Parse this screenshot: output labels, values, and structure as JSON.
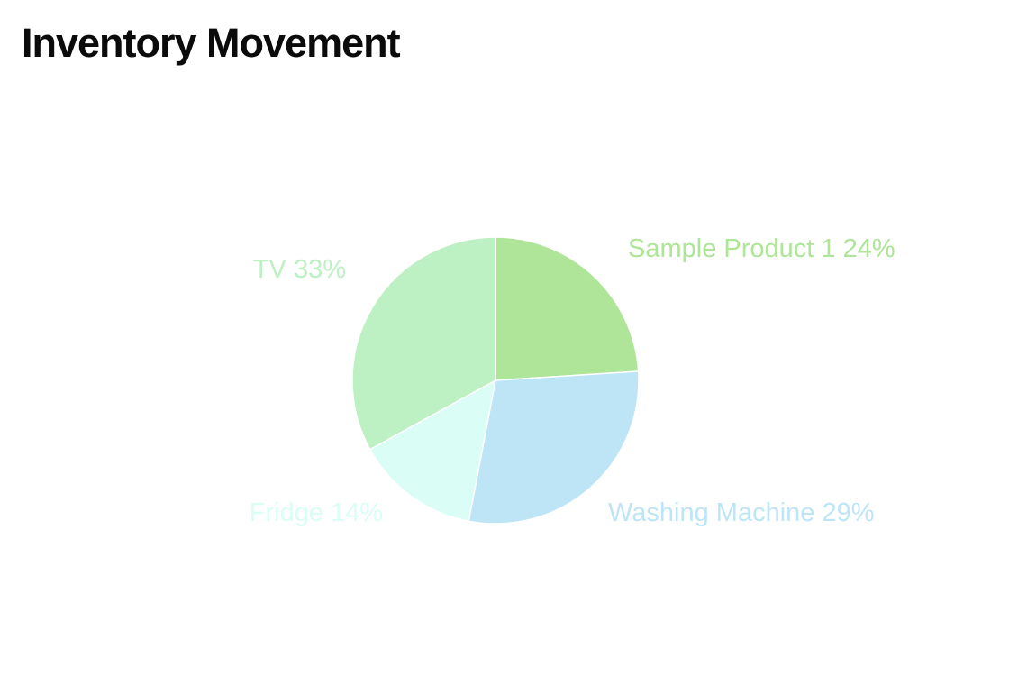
{
  "page": {
    "title": "Inventory Movement"
  },
  "chart_data": {
    "type": "pie",
    "title": "",
    "slices": [
      {
        "label": "Sample Product 1",
        "value": 24,
        "display": "Sample Product 1 24%",
        "color": "#aee598"
      },
      {
        "label": "Washing Machine",
        "value": 29,
        "display": "Washing Machine 29%",
        "color": "#bde5f6"
      },
      {
        "label": "Fridge",
        "value": 14,
        "display": "Fridge 14%",
        "color": "#dafdf6"
      },
      {
        "label": "TV",
        "value": 33,
        "display": "TV 33%",
        "color": "#bdf0c2"
      }
    ],
    "start_angle_deg": 0,
    "direction": "clockwise-from-12-oclock"
  }
}
